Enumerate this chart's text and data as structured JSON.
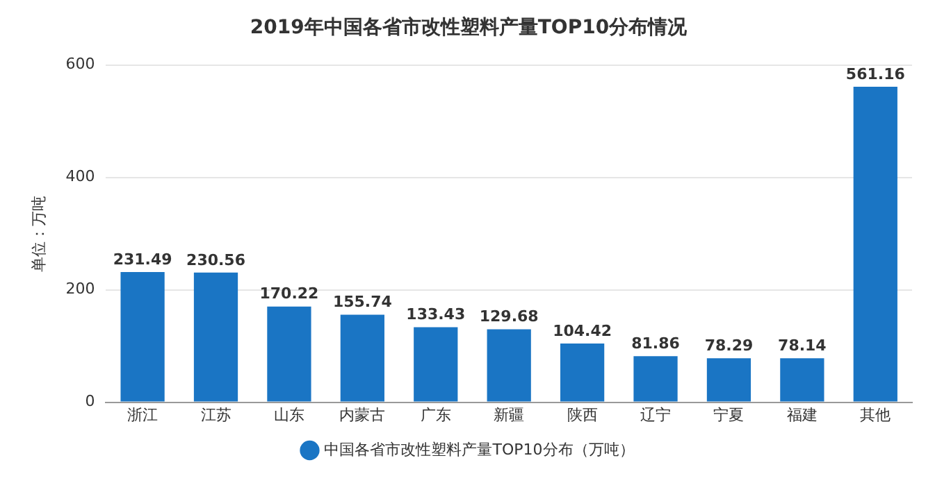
{
  "chart_data": {
    "type": "bar",
    "title": "2019年中国各省市改性塑料产量TOP10分布情况",
    "ylabel": "单位：万吨",
    "categories": [
      "浙江",
      "江苏",
      "山东",
      "内蒙古",
      "广东",
      "新疆",
      "陕西",
      "辽宁",
      "宁夏",
      "福建",
      "其他"
    ],
    "series": [
      {
        "name": "中国各省市改性塑料产量TOP10分布（万吨）",
        "color": "#1a75c4",
        "values": [
          231.49,
          230.56,
          170.22,
          155.74,
          133.43,
          129.68,
          104.42,
          81.86,
          78.29,
          78.14,
          561.16
        ]
      }
    ],
    "ylim": [
      0,
      600
    ],
    "yticks": [
      0,
      200,
      400,
      600
    ],
    "grid": "y",
    "legend": "bottom",
    "data_labels": true
  }
}
